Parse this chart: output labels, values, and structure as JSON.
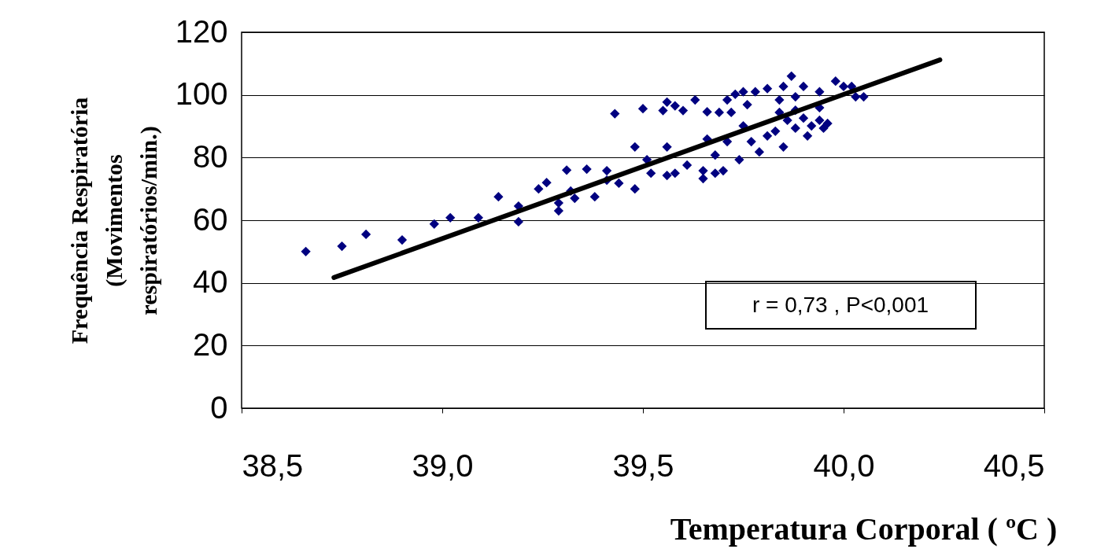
{
  "chart_data": {
    "type": "scatter",
    "xlabel": "Temperatura Corporal ( ºC )",
    "ylabel": "Frequência Respiratória (Movimentos respiratórios/min.)",
    "xlim": [
      38.5,
      40.5
    ],
    "xticks": [
      {
        "value": 38.5,
        "label": "38,5"
      },
      {
        "value": 39.0,
        "label": "39,0"
      },
      {
        "value": 39.5,
        "label": "39,5"
      },
      {
        "value": 40.0,
        "label": "40,0"
      },
      {
        "value": 40.5,
        "label": "40,5"
      }
    ],
    "ylim": [
      0,
      120
    ],
    "yticks": [
      0,
      20,
      40,
      60,
      80,
      100,
      120
    ],
    "grid": "y",
    "annotations": [
      "r = 0,73 , P<0,001"
    ],
    "series": [
      {
        "type": "scatter",
        "marker": "diamond",
        "color": "#000080",
        "x": [
          38.66,
          38.75,
          38.81,
          38.9,
          38.98,
          39.02,
          39.09,
          39.14,
          39.19,
          39.19,
          39.24,
          39.26,
          39.29,
          39.29,
          39.32,
          39.31,
          39.36,
          39.38,
          39.41,
          39.43,
          39.5,
          39.55,
          39.56,
          39.58,
          39.6,
          39.63,
          39.66,
          39.69,
          39.71,
          39.73,
          39.72,
          39.75,
          39.78,
          39.76,
          39.81,
          39.85,
          39.87,
          39.9,
          39.84,
          39.88,
          39.94,
          39.98,
          40.0,
          39.48,
          39.56,
          39.51,
          39.52,
          39.41,
          39.44,
          39.48,
          39.56,
          39.58,
          39.61,
          39.65,
          39.65,
          39.68,
          39.7,
          39.66,
          39.68,
          39.71,
          39.74,
          39.75,
          39.77,
          39.79,
          39.81,
          39.83,
          39.85,
          39.86,
          39.88,
          39.9,
          39.91,
          39.92,
          39.94,
          39.95,
          39.94,
          39.88,
          39.84,
          40.03,
          40.05,
          40.02,
          39.96,
          39.33
        ],
        "values": [
          50,
          51.7,
          55.5,
          53.7,
          58.8,
          60.8,
          60.8,
          67.5,
          64.5,
          59.5,
          70,
          72,
          65.5,
          63,
          69.3,
          76,
          76.3,
          67.5,
          72.8,
          94,
          95.6,
          95,
          97.7,
          96.5,
          95,
          98.4,
          94.6,
          94.4,
          98.4,
          100.2,
          94.4,
          101,
          101,
          96.9,
          102,
          102.7,
          106,
          102.7,
          98.4,
          99.4,
          101,
          104.4,
          102.7,
          83.4,
          83.4,
          79.3,
          75,
          75.8,
          71.8,
          70,
          74.3,
          75,
          77.6,
          75.8,
          73.3,
          75,
          75.8,
          85.9,
          80.8,
          85.1,
          79.3,
          90.1,
          85.1,
          81.8,
          86.9,
          88.4,
          83.4,
          91.9,
          89.4,
          92.6,
          86.9,
          90.1,
          91.9,
          89.4,
          95.9,
          95.1,
          94.4,
          99.4,
          99.4,
          102.7,
          90.9,
          67
        ]
      },
      {
        "type": "line",
        "marker": "none",
        "line_style": "solid",
        "color": "#000000",
        "x": [
          38.73,
          40.24
        ],
        "values": [
          41.7,
          111.2
        ]
      }
    ]
  }
}
